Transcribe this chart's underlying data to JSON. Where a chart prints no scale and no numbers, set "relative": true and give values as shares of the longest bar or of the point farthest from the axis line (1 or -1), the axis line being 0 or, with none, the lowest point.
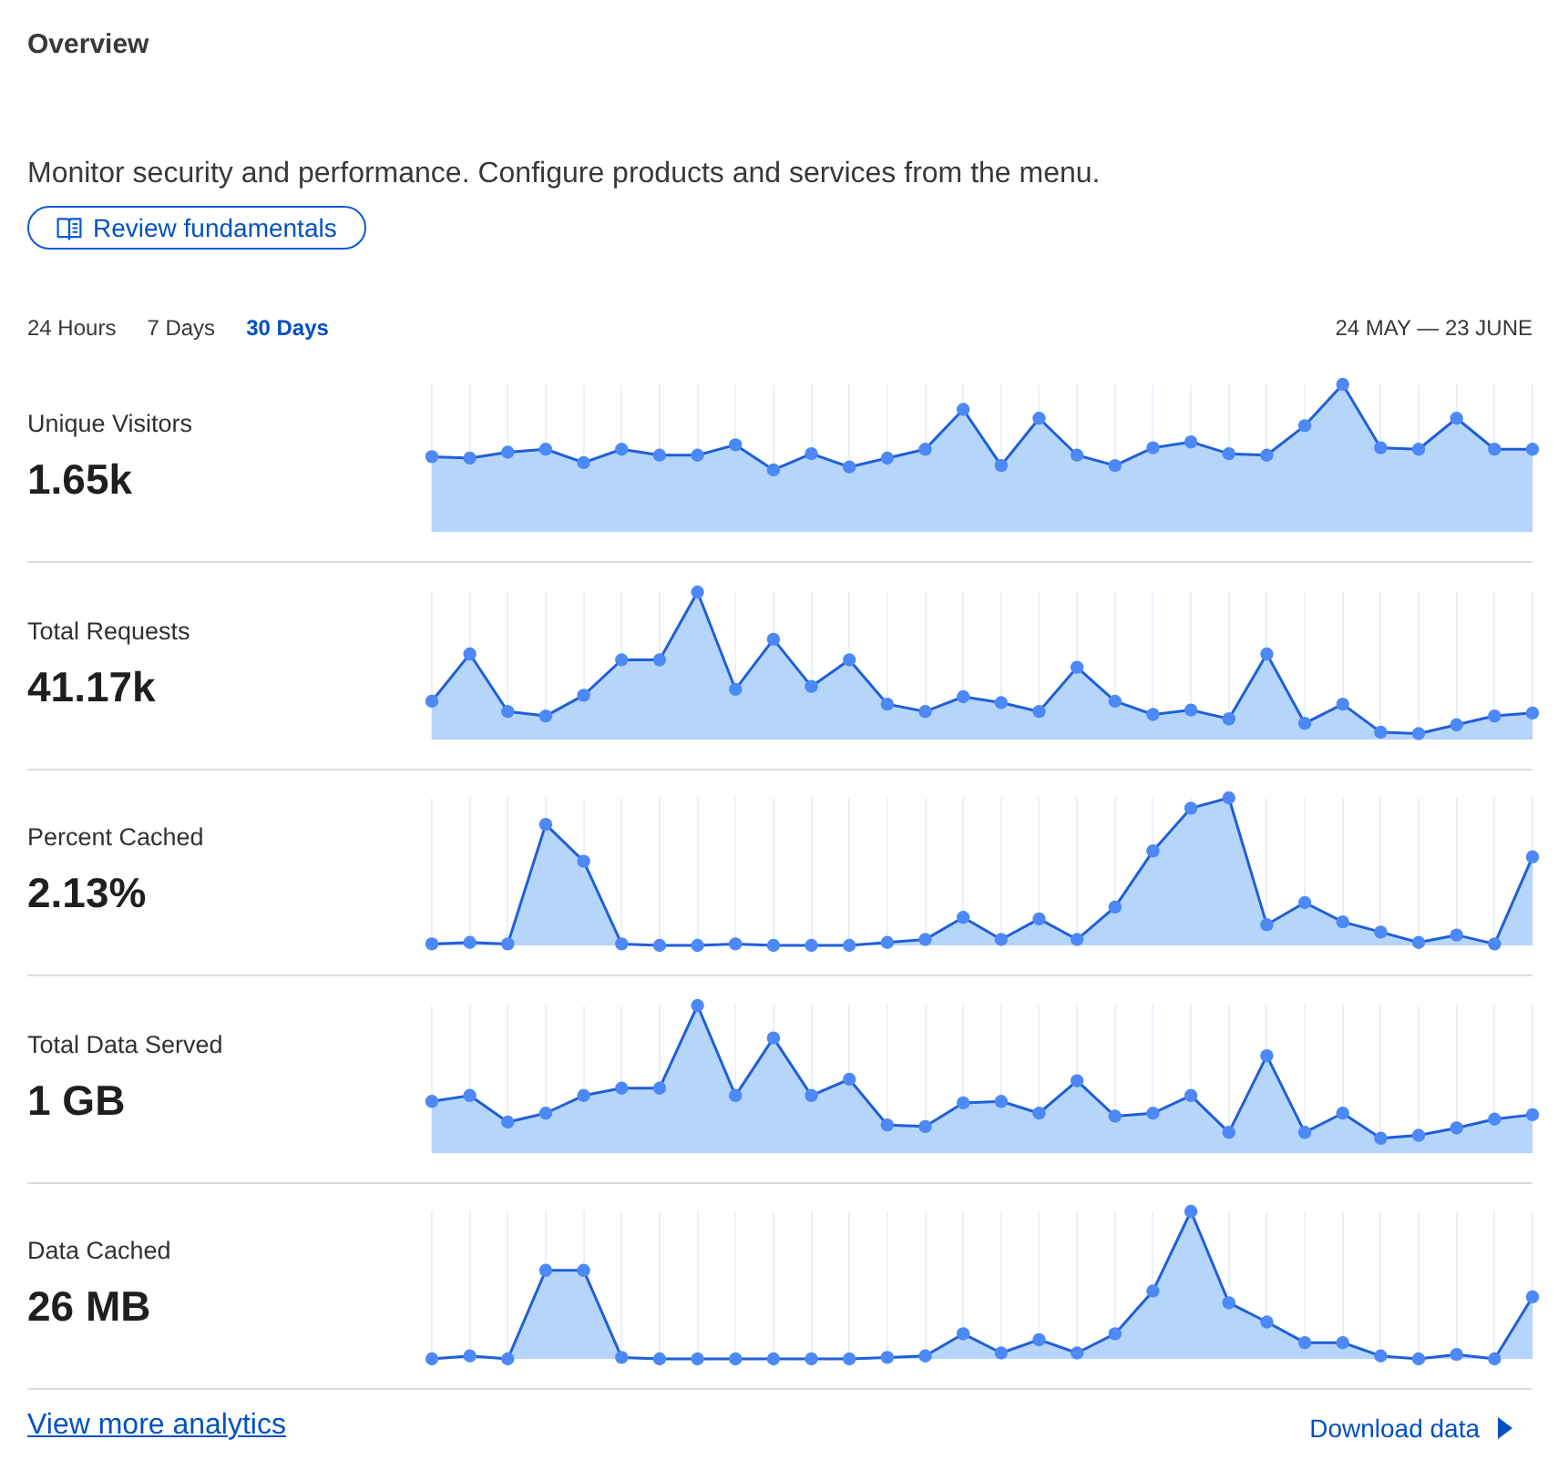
{
  "chart_data": [
    {
      "type": "other",
      "title": "Overview",
      "subtitle": "Monitor security and performance. Configure products and services from the menu.",
      "annotations": [
        "Review fundamentals",
        "24 Hours",
        "7 Days",
        "30 Days",
        "24 MAY — 23 JUNE"
      ]
    },
    {
      "type": "area",
      "ylabel": "Unique Visitors",
      "annotations": [
        "1.65k"
      ],
      "relative": true,
      "grid": "x",
      "marker": "circle",
      "line_style": "solid",
      "color": "#1f5fd8",
      "categories": [
        null,
        null,
        null,
        null,
        null,
        null,
        null,
        null,
        null,
        null,
        null,
        null,
        null,
        null,
        null,
        null,
        null,
        null,
        null,
        null,
        null,
        null,
        null,
        null,
        null,
        null,
        null,
        null,
        null,
        null
      ],
      "values": [
        0.51,
        0.5,
        0.54,
        0.56,
        0.47,
        0.56,
        0.52,
        0.52,
        0.59,
        0.42,
        0.53,
        0.44,
        0.5,
        0.56,
        0.83,
        0.45,
        0.77,
        0.52,
        0.45,
        0.57,
        0.61,
        0.53,
        0.52,
        0.72,
        1,
        0.57,
        0.56,
        0.77,
        0.56,
        0.56
      ]
    },
    {
      "type": "area",
      "ylabel": "Total Requests",
      "annotations": [
        "41.17k"
      ],
      "relative": true,
      "grid": "x",
      "marker": "circle",
      "line_style": "solid",
      "color": "#1f5fd8",
      "categories": [
        null,
        null,
        null,
        null,
        null,
        null,
        null,
        null,
        null,
        null,
        null,
        null,
        null,
        null,
        null,
        null,
        null,
        null,
        null,
        null,
        null,
        null,
        null,
        null,
        null,
        null,
        null,
        null,
        null,
        null
      ],
      "values": [
        0.26,
        0.58,
        0.19,
        0.16,
        0.3,
        0.54,
        0.54,
        1,
        0.34,
        0.68,
        0.36,
        0.54,
        0.24,
        0.19,
        0.29,
        0.25,
        0.19,
        0.49,
        0.26,
        0.17,
        0.2,
        0.14,
        0.58,
        0.11,
        0.24,
        0.05,
        0.04,
        0.1,
        0.16,
        0.18
      ]
    },
    {
      "type": "area",
      "ylabel": "Percent Cached",
      "annotations": [
        "2.13%"
      ],
      "relative": true,
      "grid": "x",
      "marker": "circle",
      "line_style": "solid",
      "color": "#1f5fd8",
      "categories": [
        null,
        null,
        null,
        null,
        null,
        null,
        null,
        null,
        null,
        null,
        null,
        null,
        null,
        null,
        null,
        null,
        null,
        null,
        null,
        null,
        null,
        null,
        null,
        null,
        null,
        null,
        null,
        null,
        null,
        null
      ],
      "values": [
        0.01,
        0.02,
        0.01,
        0.82,
        0.57,
        0.01,
        0,
        0,
        0.01,
        0,
        0,
        0,
        0.02,
        0.04,
        0.19,
        0.04,
        0.18,
        0.04,
        0.26,
        0.64,
        0.93,
        1,
        0.14,
        0.29,
        0.16,
        0.09,
        0.02,
        0.07,
        0.01,
        0.6
      ]
    },
    {
      "type": "area",
      "ylabel": "Total Data Served",
      "annotations": [
        "1 GB"
      ],
      "relative": true,
      "grid": "x",
      "marker": "circle",
      "line_style": "solid",
      "color": "#1f5fd8",
      "categories": [
        null,
        null,
        null,
        null,
        null,
        null,
        null,
        null,
        null,
        null,
        null,
        null,
        null,
        null,
        null,
        null,
        null,
        null,
        null,
        null,
        null,
        null,
        null,
        null,
        null,
        null,
        null,
        null,
        null,
        null
      ],
      "values": [
        0.35,
        0.39,
        0.21,
        0.27,
        0.39,
        0.44,
        0.44,
        1,
        0.39,
        0.78,
        0.39,
        0.5,
        0.19,
        0.18,
        0.34,
        0.35,
        0.27,
        0.49,
        0.25,
        0.27,
        0.39,
        0.14,
        0.66,
        0.14,
        0.27,
        0.1,
        0.12,
        0.17,
        0.23,
        0.26
      ]
    },
    {
      "type": "area",
      "ylabel": "Data Cached",
      "annotations": [
        "26 MB"
      ],
      "relative": true,
      "grid": "x",
      "marker": "circle",
      "line_style": "solid",
      "color": "#1f5fd8",
      "categories": [
        null,
        null,
        null,
        null,
        null,
        null,
        null,
        null,
        null,
        null,
        null,
        null,
        null,
        null,
        null,
        null,
        null,
        null,
        null,
        null,
        null,
        null,
        null,
        null,
        null,
        null,
        null,
        null,
        null,
        null
      ],
      "values": [
        0,
        0.02,
        0,
        0.6,
        0.6,
        0.01,
        0,
        0,
        0,
        0,
        0,
        0,
        0.01,
        0.02,
        0.17,
        0.04,
        0.13,
        0.04,
        0.17,
        0.46,
        1,
        0.38,
        0.25,
        0.11,
        0.11,
        0.02,
        0,
        0.03,
        0,
        0.42
      ]
    },
    {
      "type": "other",
      "annotations": [
        "View more analytics",
        "Download data"
      ]
    }
  ]
}
